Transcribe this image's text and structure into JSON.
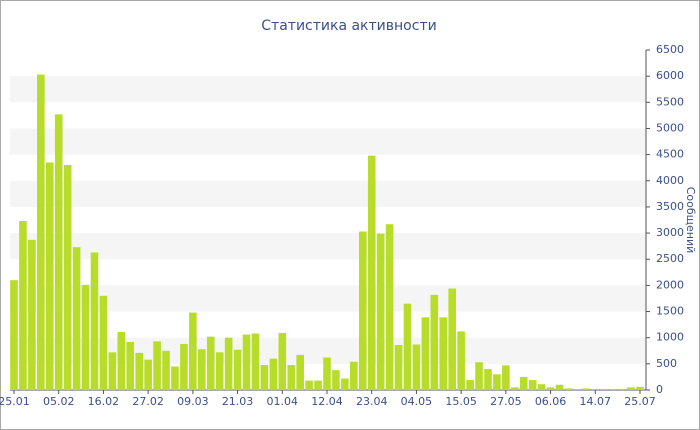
{
  "chart_data": {
    "type": "bar",
    "title": "Статистика активности",
    "y_label": "Сообщений",
    "categories": [
      "25.01",
      null,
      null,
      null,
      null,
      "05.02",
      null,
      null,
      null,
      null,
      "16.02",
      null,
      null,
      null,
      null,
      "27.02",
      null,
      null,
      null,
      null,
      "09.03",
      null,
      null,
      null,
      null,
      "21.03",
      null,
      null,
      null,
      null,
      "01.04",
      null,
      null,
      null,
      null,
      "12.04",
      null,
      null,
      null,
      null,
      "23.04",
      null,
      null,
      null,
      null,
      "04.05",
      null,
      null,
      null,
      null,
      "15.05",
      null,
      null,
      null,
      null,
      "27.05",
      null,
      null,
      null,
      null,
      "06.06",
      null,
      null,
      null,
      null,
      "14.07",
      null,
      null,
      null,
      null,
      "25.07"
    ],
    "values": [
      2100,
      3230,
      2870,
      6030,
      4350,
      5270,
      4300,
      2730,
      2010,
      2630,
      1800,
      720,
      1110,
      920,
      710,
      580,
      930,
      750,
      450,
      880,
      1480,
      780,
      1020,
      720,
      1000,
      770,
      1060,
      1080,
      480,
      600,
      1090,
      480,
      670,
      180,
      180,
      620,
      380,
      220,
      540,
      3030,
      4480,
      2990,
      3170,
      860,
      1650,
      870,
      1390,
      1820,
      1390,
      1940,
      1120,
      190,
      530,
      400,
      300,
      470,
      50,
      250,
      190,
      110,
      50,
      100,
      30,
      20,
      30,
      20,
      20,
      20,
      20,
      50,
      60
    ],
    "color": "#b8dc2a",
    "ylim": [
      0,
      6500
    ],
    "yticks": [
      0,
      500,
      1000,
      1500,
      2000,
      2500,
      3000,
      3500,
      4000,
      4500,
      5000,
      5500,
      6000,
      6500
    ],
    "grid": true
  }
}
